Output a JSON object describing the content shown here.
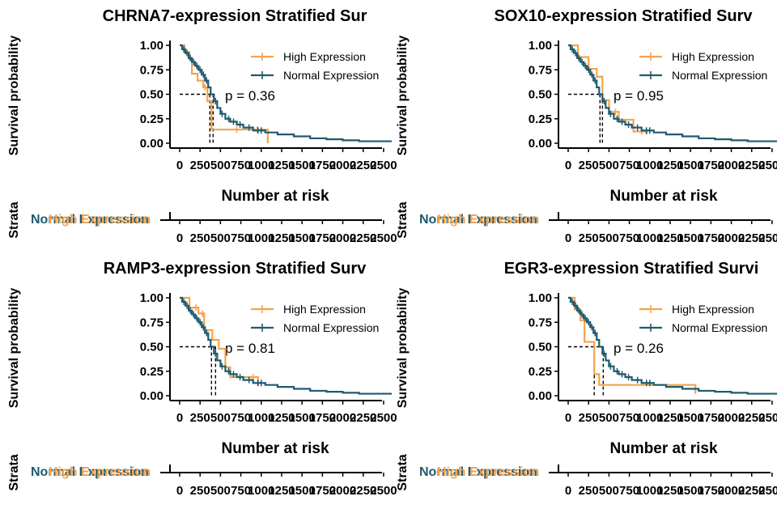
{
  "colors": {
    "high": "#f5a34c",
    "normal": "#1f5a70",
    "axis": "#000000"
  },
  "legend": [
    "High Expression",
    "Normal Expression"
  ],
  "risk_table": {
    "title": "Number at risk",
    "ylabel": "Strata",
    "row_labels": [
      "Normal Expression",
      "High Expression"
    ]
  },
  "chart_data": [
    {
      "type": "line",
      "title": "CHRNA7-expression Stratified Sur",
      "ylabel": "Survival probability",
      "xlabel": "",
      "pvalue": "p = 0.36",
      "xlim": [
        0,
        2600
      ],
      "ylim": [
        0,
        1
      ],
      "xticks": [
        0,
        250,
        500,
        750,
        1000,
        1250,
        1500,
        1750,
        2000,
        2250,
        2500
      ],
      "xtick_labels": [
        "0",
        "250",
        "500",
        "750",
        "1000",
        "1250",
        "1500",
        "1750",
        "2000",
        "2250",
        "2500"
      ],
      "yticks": [
        0,
        0.25,
        0.5,
        0.75,
        1
      ],
      "ytick_labels": [
        "0.00",
        "0.25",
        "0.50",
        "0.75",
        "1.00"
      ],
      "medians": [
        370,
        410
      ],
      "series": [
        {
          "name": "High Expression",
          "color": "high",
          "steps": [
            [
              0,
              1
            ],
            [
              60,
              0.93
            ],
            [
              120,
              0.86
            ],
            [
              150,
              0.71
            ],
            [
              220,
              0.64
            ],
            [
              290,
              0.57
            ],
            [
              340,
              0.43
            ],
            [
              390,
              0.14
            ],
            [
              1080,
              0
            ]
          ],
          "end": 1080,
          "censor": [
            [
              310,
              0.57
            ],
            [
              700,
              0.14
            ],
            [
              950,
              0.14
            ]
          ]
        },
        {
          "name": "Normal Expression",
          "color": "normal",
          "steps": [
            [
              0,
              1
            ],
            [
              30,
              0.96
            ],
            [
              70,
              0.92
            ],
            [
              110,
              0.87
            ],
            [
              150,
              0.83
            ],
            [
              190,
              0.79
            ],
            [
              230,
              0.75
            ],
            [
              270,
              0.7
            ],
            [
              310,
              0.64
            ],
            [
              350,
              0.57
            ],
            [
              380,
              0.5
            ],
            [
              420,
              0.43
            ],
            [
              460,
              0.36
            ],
            [
              500,
              0.3
            ],
            [
              560,
              0.25
            ],
            [
              620,
              0.22
            ],
            [
              700,
              0.19
            ],
            [
              780,
              0.16
            ],
            [
              900,
              0.13
            ],
            [
              1050,
              0.11
            ],
            [
              1200,
              0.09
            ],
            [
              1400,
              0.07
            ],
            [
              1600,
              0.05
            ],
            [
              1800,
              0.04
            ],
            [
              2000,
              0.03
            ],
            [
              2200,
              0.02
            ]
          ],
          "end": 2600,
          "censor": [
            [
              50,
              0.96
            ],
            [
              90,
              0.92
            ],
            [
              130,
              0.87
            ],
            [
              170,
              0.83
            ],
            [
              210,
              0.79
            ],
            [
              250,
              0.75
            ],
            [
              290,
              0.7
            ],
            [
              330,
              0.64
            ],
            [
              440,
              0.43
            ],
            [
              520,
              0.3
            ],
            [
              600,
              0.25
            ],
            [
              660,
              0.22
            ],
            [
              740,
              0.19
            ],
            [
              850,
              0.16
            ],
            [
              960,
              0.13
            ],
            [
              1000,
              0.13
            ]
          ]
        }
      ]
    },
    {
      "type": "line",
      "title": "SOX10-expression Stratified Surv",
      "ylabel": "Survival probability",
      "xlabel": "",
      "pvalue": "p = 0.95",
      "xlim": [
        0,
        2600
      ],
      "ylim": [
        0,
        1
      ],
      "xticks": [
        0,
        250,
        500,
        750,
        1000,
        1250,
        1500,
        1750,
        2000,
        2250,
        2500
      ],
      "xtick_labels": [
        "0",
        "250",
        "500",
        "750",
        "1000",
        "1250",
        "1500",
        "1750",
        "2000",
        "2250",
        "2500"
      ],
      "yticks": [
        0,
        0.25,
        0.5,
        0.75,
        1
      ],
      "ytick_labels": [
        "0.00",
        "0.25",
        "0.50",
        "0.75",
        "1.00"
      ],
      "medians": [
        390,
        420
      ],
      "series": [
        {
          "name": "High Expression",
          "color": "high",
          "steps": [
            [
              0,
              1
            ],
            [
              120,
              0.88
            ],
            [
              250,
              0.76
            ],
            [
              350,
              0.68
            ],
            [
              420,
              0.44
            ],
            [
              500,
              0.32
            ],
            [
              620,
              0.24
            ],
            [
              800,
              0.12
            ],
            [
              960,
              0.09
            ]
          ],
          "end": 960,
          "censor": [
            [
              580,
              0.32
            ],
            [
              900,
              0.12
            ]
          ]
        },
        {
          "name": "Normal Expression",
          "color": "normal",
          "steps": [
            [
              0,
              1
            ],
            [
              30,
              0.96
            ],
            [
              70,
              0.92
            ],
            [
              110,
              0.87
            ],
            [
              150,
              0.83
            ],
            [
              190,
              0.79
            ],
            [
              230,
              0.75
            ],
            [
              270,
              0.7
            ],
            [
              310,
              0.64
            ],
            [
              350,
              0.57
            ],
            [
              380,
              0.5
            ],
            [
              420,
              0.43
            ],
            [
              460,
              0.36
            ],
            [
              500,
              0.3
            ],
            [
              560,
              0.25
            ],
            [
              620,
              0.22
            ],
            [
              700,
              0.19
            ],
            [
              780,
              0.16
            ],
            [
              900,
              0.13
            ],
            [
              1050,
              0.11
            ],
            [
              1200,
              0.09
            ],
            [
              1400,
              0.07
            ],
            [
              1600,
              0.05
            ],
            [
              1800,
              0.04
            ],
            [
              2000,
              0.03
            ],
            [
              2200,
              0.02
            ]
          ],
          "end": 2600,
          "censor": [
            [
              50,
              0.96
            ],
            [
              90,
              0.92
            ],
            [
              130,
              0.87
            ],
            [
              170,
              0.83
            ],
            [
              210,
              0.79
            ],
            [
              250,
              0.75
            ],
            [
              290,
              0.7
            ],
            [
              330,
              0.64
            ],
            [
              440,
              0.43
            ],
            [
              520,
              0.3
            ],
            [
              600,
              0.25
            ],
            [
              660,
              0.22
            ],
            [
              740,
              0.19
            ],
            [
              850,
              0.16
            ],
            [
              960,
              0.13
            ],
            [
              1000,
              0.13
            ]
          ]
        }
      ]
    },
    {
      "type": "line",
      "title": "RAMP3-expression Stratified Surv",
      "ylabel": "Survival probability",
      "xlabel": "",
      "pvalue": "p = 0.81",
      "xlim": [
        0,
        2600
      ],
      "ylim": [
        0,
        1
      ],
      "xticks": [
        0,
        250,
        500,
        750,
        1000,
        1250,
        1500,
        1750,
        2000,
        2250,
        2500
      ],
      "xtick_labels": [
        "0",
        "250",
        "500",
        "750",
        "1000",
        "1250",
        "1500",
        "1750",
        "2000",
        "2250",
        "2500"
      ],
      "yticks": [
        0,
        0.25,
        0.5,
        0.75,
        1
      ],
      "ytick_labels": [
        "0.00",
        "0.25",
        "0.50",
        "0.75",
        "1.00"
      ],
      "medians": [
        390,
        440
      ],
      "series": [
        {
          "name": "High Expression",
          "color": "high",
          "steps": [
            [
              0,
              1
            ],
            [
              120,
              0.9
            ],
            [
              230,
              0.84
            ],
            [
              300,
              0.67
            ],
            [
              400,
              0.57
            ],
            [
              480,
              0.48
            ],
            [
              560,
              0.29
            ],
            [
              620,
              0.19
            ],
            [
              960,
              0.1
            ]
          ],
          "end": 960,
          "censor": [
            [
              200,
              0.9
            ],
            [
              280,
              0.84
            ],
            [
              900,
              0.19
            ]
          ]
        },
        {
          "name": "Normal Expression",
          "color": "normal",
          "steps": [
            [
              0,
              1
            ],
            [
              30,
              0.96
            ],
            [
              70,
              0.92
            ],
            [
              110,
              0.87
            ],
            [
              150,
              0.83
            ],
            [
              190,
              0.79
            ],
            [
              230,
              0.75
            ],
            [
              270,
              0.7
            ],
            [
              310,
              0.64
            ],
            [
              350,
              0.57
            ],
            [
              380,
              0.5
            ],
            [
              420,
              0.43
            ],
            [
              460,
              0.36
            ],
            [
              500,
              0.3
            ],
            [
              560,
              0.25
            ],
            [
              620,
              0.22
            ],
            [
              700,
              0.19
            ],
            [
              780,
              0.16
            ],
            [
              900,
              0.13
            ],
            [
              1050,
              0.11
            ],
            [
              1200,
              0.09
            ],
            [
              1400,
              0.07
            ],
            [
              1600,
              0.05
            ],
            [
              1800,
              0.04
            ],
            [
              2000,
              0.03
            ],
            [
              2200,
              0.02
            ]
          ],
          "end": 2600,
          "censor": [
            [
              50,
              0.96
            ],
            [
              90,
              0.92
            ],
            [
              130,
              0.87
            ],
            [
              170,
              0.83
            ],
            [
              210,
              0.79
            ],
            [
              250,
              0.75
            ],
            [
              290,
              0.7
            ],
            [
              330,
              0.64
            ],
            [
              440,
              0.43
            ],
            [
              520,
              0.3
            ],
            [
              600,
              0.25
            ],
            [
              660,
              0.22
            ],
            [
              740,
              0.19
            ],
            [
              850,
              0.16
            ],
            [
              960,
              0.13
            ],
            [
              1000,
              0.13
            ]
          ]
        }
      ]
    },
    {
      "type": "line",
      "title": "EGR3-expression Stratified Survi",
      "ylabel": "Survival probability",
      "xlabel": "",
      "pvalue": "p = 0.26",
      "xlim": [
        0,
        2600
      ],
      "ylim": [
        0,
        1
      ],
      "xticks": [
        0,
        250,
        500,
        750,
        1000,
        1250,
        1500,
        1750,
        2000,
        2250,
        2500
      ],
      "xtick_labels": [
        "0",
        "250",
        "500",
        "750",
        "1000",
        "1250",
        "1500",
        "1750",
        "2000",
        "2250",
        "2500"
      ],
      "yticks": [
        0,
        0.25,
        0.5,
        0.75,
        1
      ],
      "ytick_labels": [
        "0.00",
        "0.25",
        "0.50",
        "0.75",
        "1.00"
      ],
      "medians": [
        320,
        430
      ],
      "series": [
        {
          "name": "High Expression",
          "color": "high",
          "steps": [
            [
              0,
              1
            ],
            [
              80,
              0.88
            ],
            [
              150,
              0.77
            ],
            [
              200,
              0.55
            ],
            [
              320,
              0.22
            ],
            [
              380,
              0.11
            ],
            [
              1560,
              0.02
            ]
          ],
          "end": 1560,
          "censor": [
            [
              120,
              0.88
            ]
          ]
        },
        {
          "name": "Normal Expression",
          "color": "normal",
          "steps": [
            [
              0,
              1
            ],
            [
              30,
              0.96
            ],
            [
              70,
              0.92
            ],
            [
              110,
              0.87
            ],
            [
              150,
              0.83
            ],
            [
              190,
              0.79
            ],
            [
              230,
              0.75
            ],
            [
              270,
              0.7
            ],
            [
              310,
              0.64
            ],
            [
              350,
              0.57
            ],
            [
              380,
              0.5
            ],
            [
              420,
              0.43
            ],
            [
              460,
              0.36
            ],
            [
              500,
              0.3
            ],
            [
              560,
              0.25
            ],
            [
              620,
              0.22
            ],
            [
              700,
              0.19
            ],
            [
              780,
              0.16
            ],
            [
              900,
              0.13
            ],
            [
              1050,
              0.11
            ],
            [
              1200,
              0.09
            ],
            [
              1400,
              0.07
            ],
            [
              1600,
              0.05
            ],
            [
              1800,
              0.04
            ],
            [
              2000,
              0.03
            ],
            [
              2200,
              0.02
            ]
          ],
          "end": 2600,
          "censor": [
            [
              50,
              0.96
            ],
            [
              90,
              0.92
            ],
            [
              130,
              0.87
            ],
            [
              170,
              0.83
            ],
            [
              210,
              0.79
            ],
            [
              250,
              0.75
            ],
            [
              290,
              0.7
            ],
            [
              330,
              0.64
            ],
            [
              440,
              0.43
            ],
            [
              520,
              0.3
            ],
            [
              600,
              0.25
            ],
            [
              660,
              0.22
            ],
            [
              740,
              0.19
            ],
            [
              850,
              0.16
            ],
            [
              960,
              0.13
            ],
            [
              1000,
              0.13
            ]
          ]
        }
      ]
    }
  ]
}
